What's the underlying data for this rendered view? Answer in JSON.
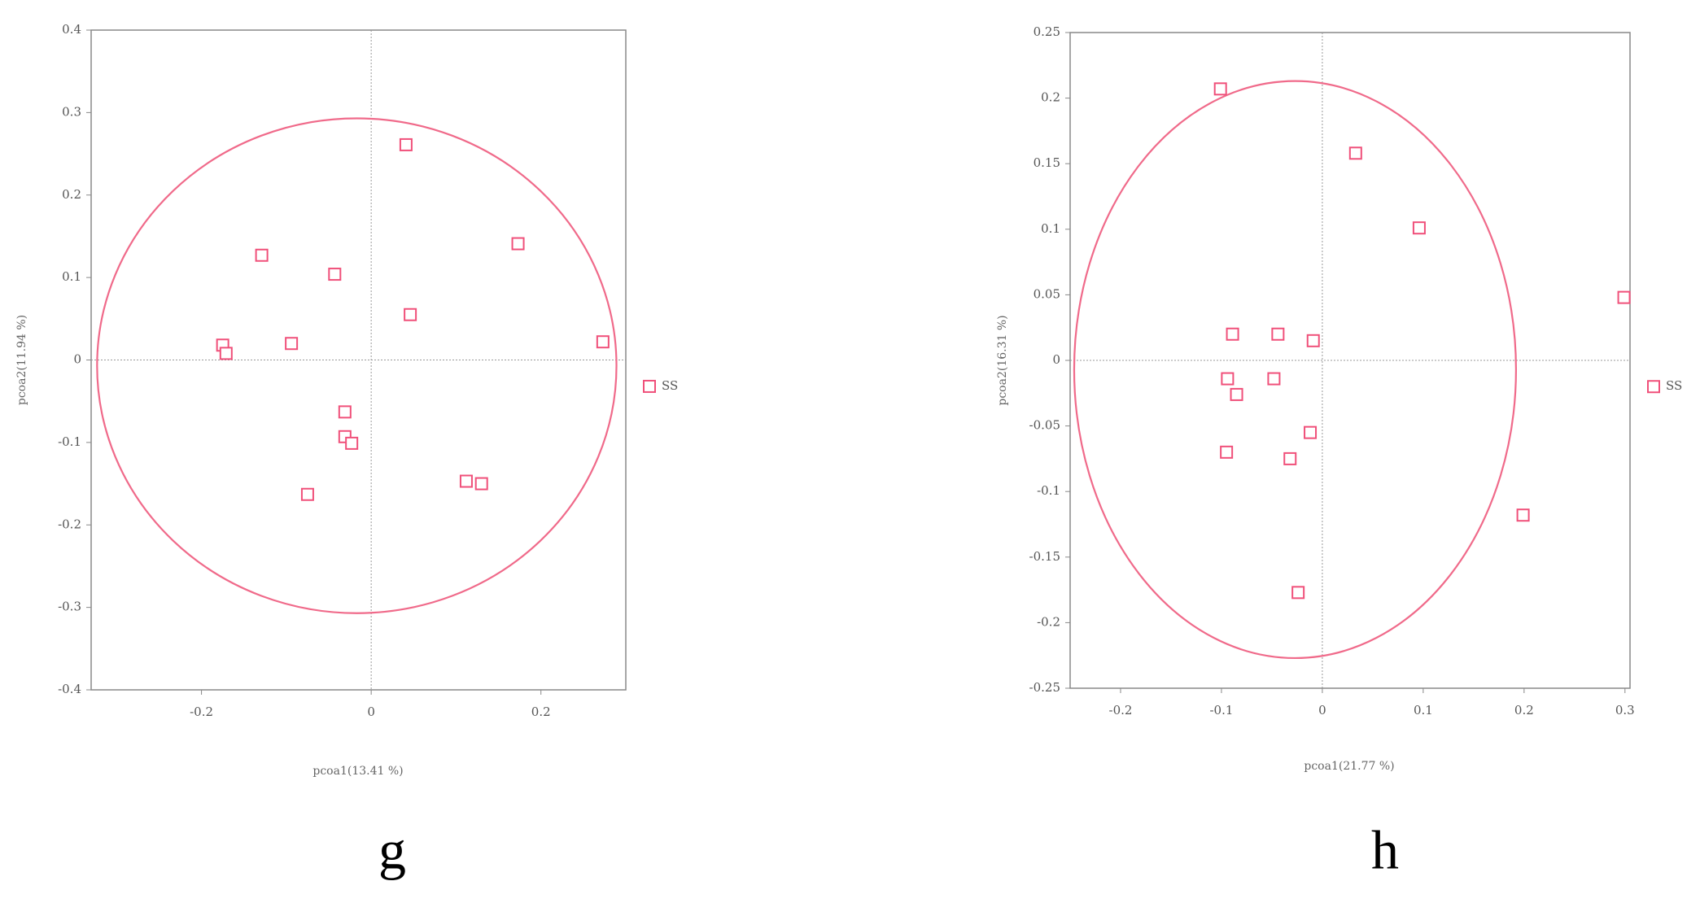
{
  "chart_data": [
    {
      "type": "scatter",
      "caption": "g",
      "xlabel": "pcoa1(13.41 %)",
      "ylabel": "pcoa2(11.94 %)",
      "xlim": [
        -0.33,
        0.3
      ],
      "ylim": [
        -0.4,
        0.4
      ],
      "xticks": [
        -0.2,
        0,
        0.2
      ],
      "yticks": [
        -0.4,
        -0.3,
        -0.2,
        -0.1,
        0,
        0.1,
        0.2,
        0.3,
        0.4
      ],
      "zero_lines": true,
      "legend": "right",
      "ellipse": {
        "cx": -0.017,
        "cy": -0.007,
        "rx": 0.306,
        "ry": 0.3,
        "color": "#f06a8a"
      },
      "series": [
        {
          "name": "SS",
          "color": "#f0507a",
          "x": [
            0.041,
            -0.129,
            -0.043,
            0.173,
            0.046,
            0.273,
            -0.175,
            -0.171,
            -0.094,
            -0.031,
            -0.031,
            -0.023,
            -0.075,
            0.112,
            0.13
          ],
          "y": [
            0.261,
            0.127,
            0.104,
            0.141,
            0.055,
            0.022,
            0.018,
            0.008,
            0.02,
            -0.063,
            -0.093,
            -0.101,
            -0.163,
            -0.147,
            -0.15
          ]
        }
      ]
    },
    {
      "type": "scatter",
      "caption": "h",
      "xlabel": "pcoa1(21.77 %)",
      "ylabel": "pcoa2(16.31 %)",
      "xlim": [
        -0.25,
        0.305
      ],
      "ylim": [
        -0.25,
        0.25
      ],
      "xticks": [
        -0.2,
        -0.1,
        0,
        0.1,
        0.2,
        0.3
      ],
      "yticks": [
        -0.25,
        -0.2,
        -0.15,
        -0.1,
        -0.05,
        0,
        0.05,
        0.1,
        0.15,
        0.2,
        0.25
      ],
      "zero_lines": true,
      "legend": "right",
      "ellipse": {
        "cx": -0.027,
        "cy": -0.007,
        "rx": 0.219,
        "ry": 0.22,
        "color": "#f06a8a"
      },
      "series": [
        {
          "name": "SS",
          "color": "#f0507a",
          "x": [
            -0.101,
            0.033,
            0.096,
            0.299,
            -0.089,
            -0.044,
            -0.009,
            -0.094,
            -0.085,
            -0.048,
            -0.095,
            -0.032,
            -0.012,
            0.199,
            -0.024
          ],
          "y": [
            0.207,
            0.158,
            0.101,
            0.048,
            0.02,
            0.02,
            0.015,
            -0.014,
            -0.026,
            -0.014,
            -0.07,
            -0.075,
            -0.055,
            -0.118,
            -0.177
          ]
        }
      ]
    }
  ]
}
